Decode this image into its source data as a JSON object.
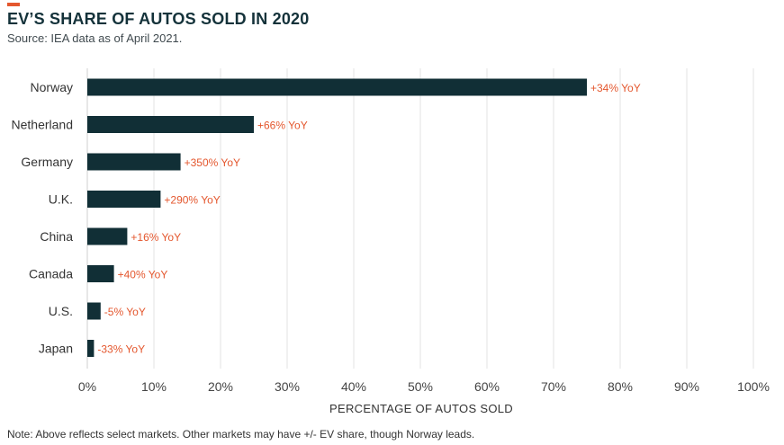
{
  "colors": {
    "bar": "#112f36",
    "accent": "#e4572e",
    "grid": "#e3e3e3"
  },
  "footer": {
    "note": "Note: Above reflects select markets. Other markets may have +/- EV share, though Norway leads."
  },
  "chart_data": {
    "type": "bar",
    "orientation": "horizontal",
    "title": "EV’S SHARE OF AUTOS SOLD IN 2020",
    "subtitle": "Source: IEA data as of April 2021.",
    "xlabel": "PERCENTAGE OF AUTOS SOLD",
    "ylabel": "",
    "xlim": [
      0,
      100
    ],
    "x_ticks": [
      "0%",
      "10%",
      "20%",
      "30%",
      "40%",
      "50%",
      "60%",
      "70%",
      "80%",
      "90%",
      "100%"
    ],
    "grid": "vertical",
    "categories": [
      "Norway",
      "Netherland",
      "Germany",
      "U.K.",
      "China",
      "Canada",
      "U.S.",
      "Japan"
    ],
    "values": [
      75,
      25,
      14,
      11,
      6,
      4,
      2,
      1
    ],
    "data_labels": [
      "+34% YoY",
      "+66% YoY",
      "+350% YoY",
      "+290% YoY",
      "+16% YoY",
      "+40% YoY",
      "-5% YoY",
      "-33% YoY"
    ]
  }
}
